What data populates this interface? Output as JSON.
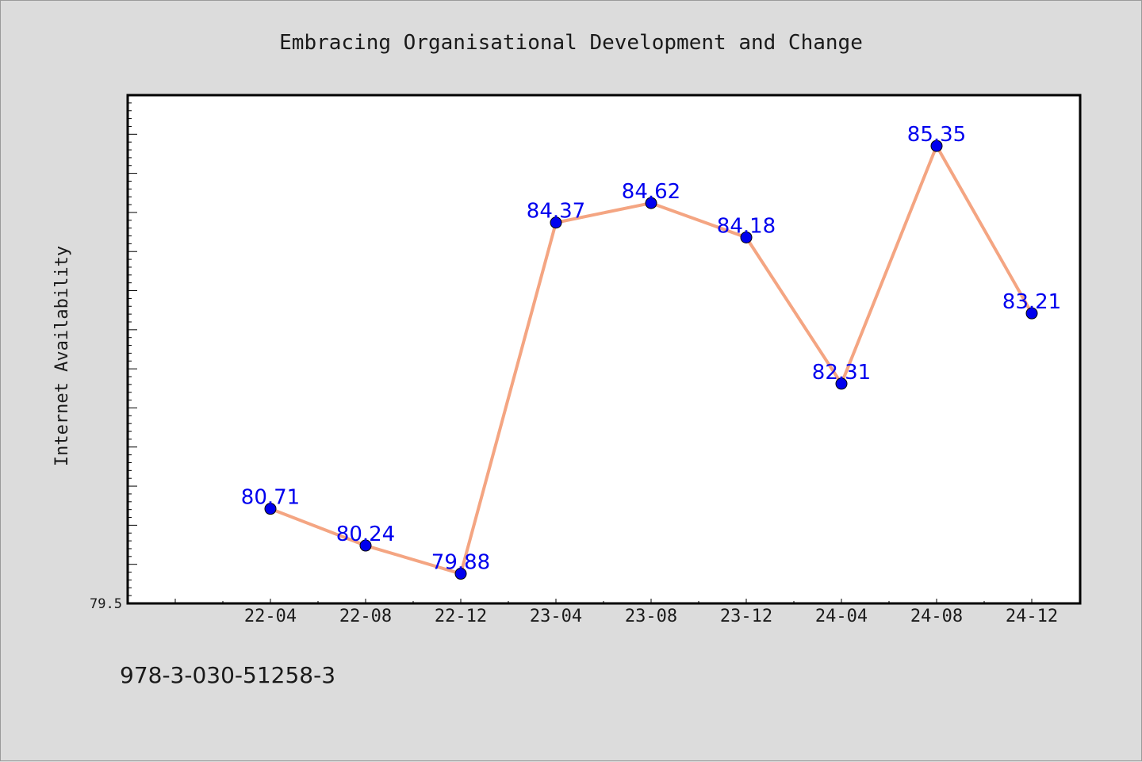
{
  "chart_data": {
    "type": "line",
    "title": "Embracing Organisational Development and Change",
    "xlabel": "",
    "ylabel": "Internet Availability",
    "categories": [
      "22-04",
      "22-08",
      "22-12",
      "23-04",
      "23-08",
      "23-12",
      "24-04",
      "24-08",
      "24-12"
    ],
    "values": [
      80.71,
      80.24,
      79.88,
      84.37,
      84.62,
      84.18,
      82.31,
      85.35,
      83.21
    ],
    "data_labels": [
      "80.71",
      "80.24",
      "79.88",
      "84.37",
      "84.62",
      "84.18",
      "82.31",
      "85.35",
      "83.21"
    ],
    "y_tick_label": "79.5",
    "ylim": [
      79.5,
      86.0
    ],
    "grid": false,
    "legend": "none",
    "colors": {
      "line": "#f4a582",
      "marker": "#0000ee",
      "data_label": "#0000ee",
      "plot_background": "#ffffff",
      "figure_background": "#dcdcdc"
    }
  },
  "footer": {
    "isbn": "978-3-030-51258-3"
  }
}
